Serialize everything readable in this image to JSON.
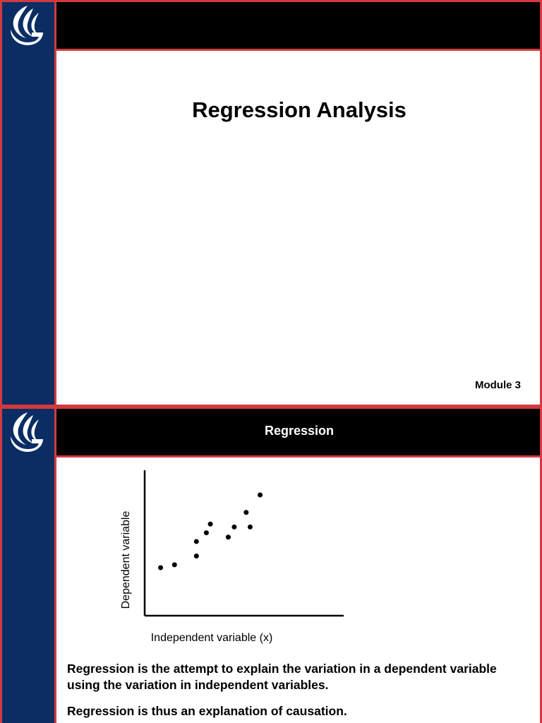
{
  "slide1": {
    "header_title": "",
    "title": "Regression Analysis",
    "module_label": "Module 3"
  },
  "slide2": {
    "header_title": "Regression",
    "paragraphs": [
      "Regression is the attempt to explain the variation in a dependent variable using the variation in independent variables.",
      "Regression is thus an explanation of causation."
    ]
  },
  "chart_data": {
    "type": "scatter",
    "title": "",
    "xlabel": "Independent variable (x)",
    "ylabel": "Dependent variable",
    "xlim": [
      0,
      10
    ],
    "ylim": [
      0,
      10
    ],
    "grid": false,
    "points": [
      {
        "x": 0.8,
        "y": 3.3
      },
      {
        "x": 1.5,
        "y": 3.5
      },
      {
        "x": 2.6,
        "y": 4.1
      },
      {
        "x": 2.6,
        "y": 5.1
      },
      {
        "x": 3.1,
        "y": 5.7
      },
      {
        "x": 3.3,
        "y": 6.3
      },
      {
        "x": 4.2,
        "y": 5.4
      },
      {
        "x": 4.5,
        "y": 6.1
      },
      {
        "x": 5.1,
        "y": 7.1
      },
      {
        "x": 5.3,
        "y": 6.1
      },
      {
        "x": 5.8,
        "y": 8.3
      }
    ]
  },
  "colors": {
    "sidebar": "#0b2d64",
    "accent": "#d23a3f",
    "header": "#000000"
  },
  "icons": {
    "logo": "flame-logo-icon"
  }
}
